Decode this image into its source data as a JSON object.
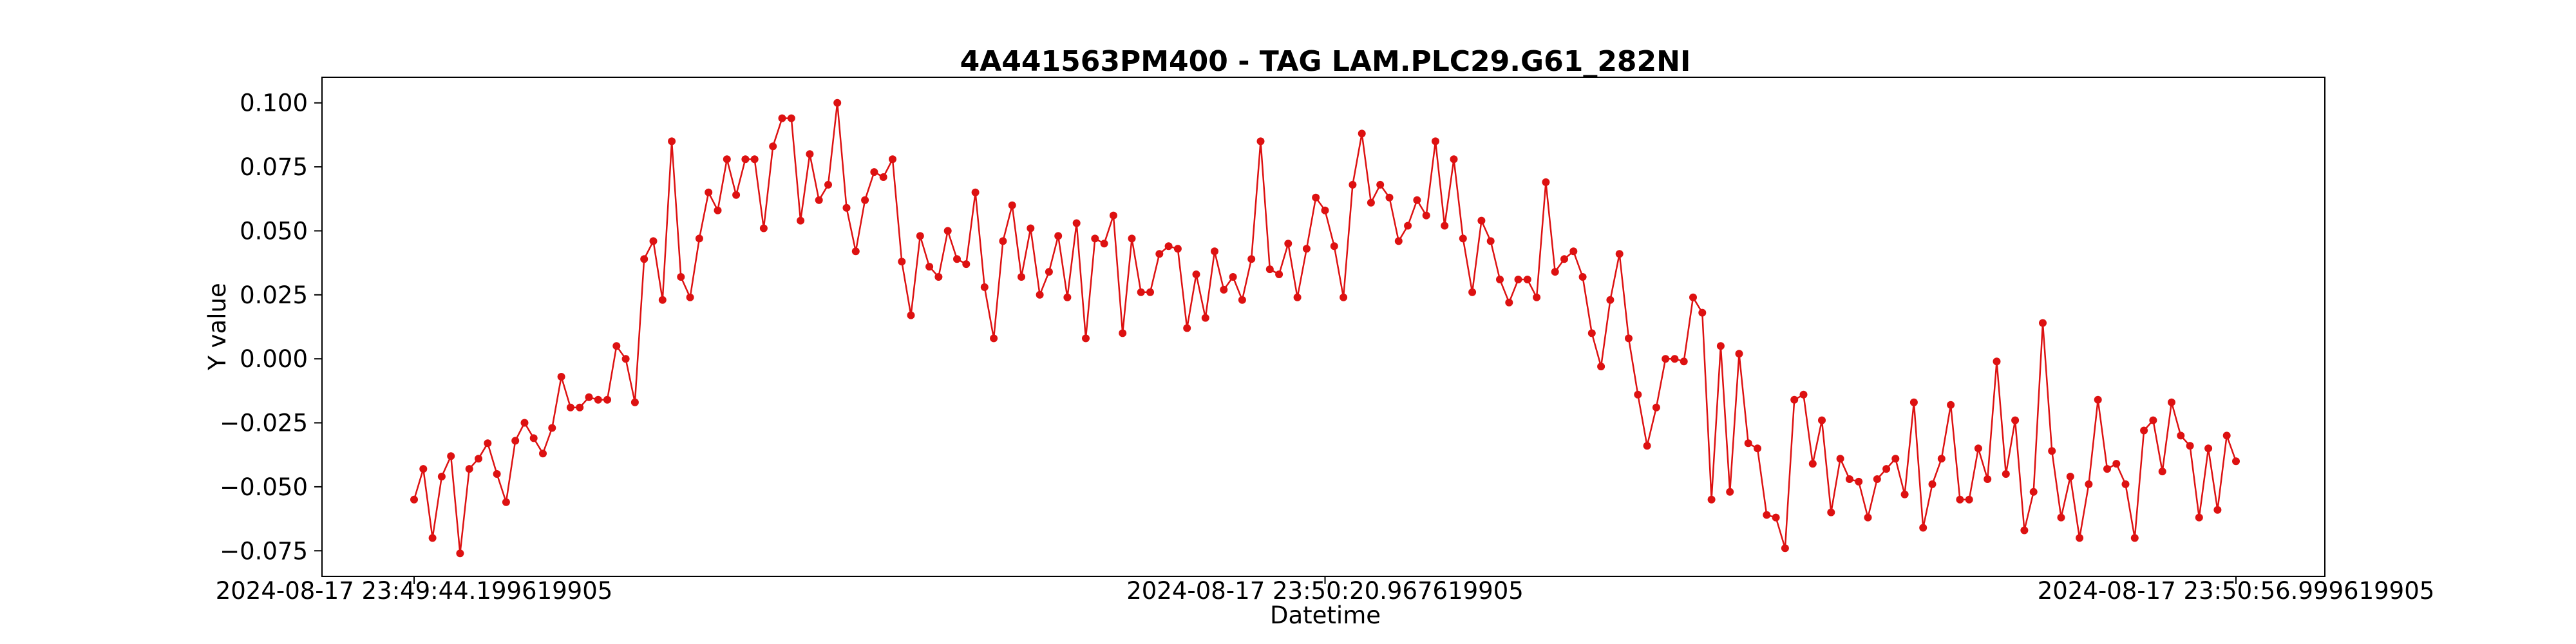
{
  "chart_data": {
    "type": "line",
    "title": "4A441563PM400 - TAG LAM.PLC29.G61_282NI",
    "xlabel": "Datetime",
    "ylabel": "Y value",
    "x_tick_labels": [
      "2024-08-17 23:49:44.199619905",
      "2024-08-17 23:50:20.967619905",
      "2024-08-17 23:50:56.999619905"
    ],
    "y_tick_labels": [
      "0.100",
      "0.075",
      "0.050",
      "0.025",
      "0.000",
      "−0.025",
      "−0.050",
      "−0.075"
    ],
    "y_ticks": [
      0.1,
      0.075,
      0.05,
      0.025,
      0.0,
      -0.025,
      -0.05,
      -0.075
    ],
    "ylim": [
      -0.085,
      0.11
    ],
    "grid": false,
    "series_color": "#dd1111",
    "series": [
      {
        "values": [
          -0.055,
          -0.043,
          -0.07,
          -0.046,
          -0.038,
          -0.076,
          -0.043,
          -0.039,
          -0.033,
          -0.045,
          -0.056,
          -0.032,
          -0.025,
          -0.031,
          -0.037,
          -0.027,
          -0.007,
          -0.019,
          -0.019,
          -0.015,
          -0.016,
          -0.016,
          0.005,
          0.0,
          -0.017,
          0.039,
          0.046,
          0.023,
          0.085,
          0.032,
          0.024,
          0.047,
          0.065,
          0.058,
          0.078,
          0.064,
          0.078,
          0.078,
          0.051,
          0.083,
          0.094,
          0.094,
          0.054,
          0.08,
          0.062,
          0.068,
          0.1,
          0.059,
          0.042,
          0.062,
          0.073,
          0.071,
          0.078,
          0.038,
          0.017,
          0.048,
          0.036,
          0.032,
          0.05,
          0.039,
          0.037,
          0.065,
          0.028,
          0.008,
          0.046,
          0.06,
          0.032,
          0.051,
          0.025,
          0.034,
          0.048,
          0.024,
          0.053,
          0.008,
          0.047,
          0.045,
          0.056,
          0.01,
          0.047,
          0.026,
          0.026,
          0.041,
          0.044,
          0.043,
          0.012,
          0.033,
          0.016,
          0.042,
          0.027,
          0.032,
          0.023,
          0.039,
          0.085,
          0.035,
          0.033,
          0.045,
          0.024,
          0.043,
          0.063,
          0.058,
          0.044,
          0.024,
          0.068,
          0.088,
          0.061,
          0.068,
          0.063,
          0.046,
          0.052,
          0.062,
          0.056,
          0.085,
          0.052,
          0.078,
          0.047,
          0.026,
          0.054,
          0.046,
          0.031,
          0.022,
          0.031,
          0.031,
          0.024,
          0.069,
          0.034,
          0.039,
          0.042,
          0.032,
          0.01,
          -0.003,
          0.023,
          0.041,
          0.008,
          -0.014,
          -0.034,
          -0.019,
          0.0,
          0.0,
          -0.001,
          0.024,
          0.018,
          -0.055,
          0.005,
          -0.052,
          0.002,
          -0.033,
          -0.035,
          -0.061,
          -0.062,
          -0.074,
          -0.016,
          -0.014,
          -0.041,
          -0.024,
          -0.06,
          -0.039,
          -0.047,
          -0.048,
          -0.062,
          -0.047,
          -0.043,
          -0.039,
          -0.053,
          -0.017,
          -0.066,
          -0.049,
          -0.039,
          -0.018,
          -0.055,
          -0.055,
          -0.035,
          -0.047,
          -0.001,
          -0.045,
          -0.024,
          -0.067,
          -0.052,
          0.014,
          -0.036,
          -0.062,
          -0.046,
          -0.07,
          -0.049,
          -0.016,
          -0.043,
          -0.041,
          -0.049,
          -0.07,
          -0.028,
          -0.024,
          -0.044,
          -0.017,
          -0.03,
          -0.034,
          -0.062,
          -0.035,
          -0.059,
          -0.03,
          -0.04
        ]
      }
    ]
  }
}
